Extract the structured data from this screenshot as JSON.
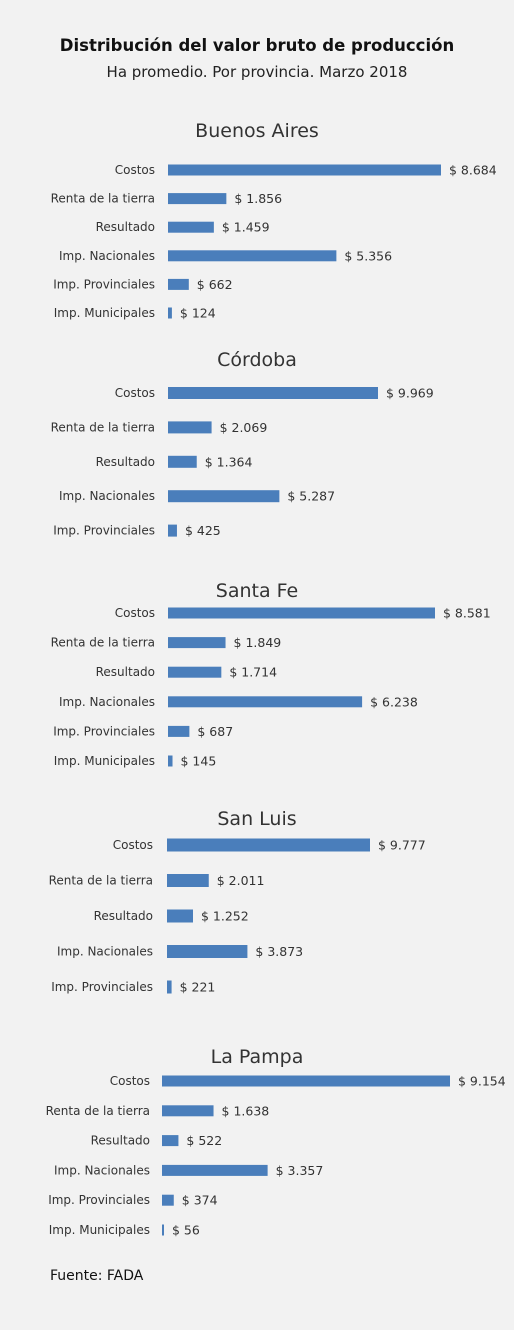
{
  "header": {
    "title": "Distribución del valor bruto de producción",
    "subtitle": "Ha promedio. Por provincia. Marzo 2018"
  },
  "footer": {
    "source": "Fuente: FADA"
  },
  "colors": {
    "bar": "#4a7ebb",
    "background": "#f2f2f2"
  },
  "chart_data": [
    {
      "type": "bar",
      "orientation": "horizontal",
      "title": "Buenos Aires",
      "categories": [
        "Costos",
        "Renta de la tierra",
        "Resultado",
        "Imp. Nacionales",
        "Imp. Provinciales",
        "Imp. Municipales"
      ],
      "values": [
        8684,
        1856,
        1459,
        5356,
        662,
        124
      ],
      "labels": [
        "$ 8.684",
        "$ 1.856",
        "$ 1.459",
        "$ 5.356",
        "$ 662",
        "$ 124"
      ]
    },
    {
      "type": "bar",
      "orientation": "horizontal",
      "title": "Córdoba",
      "categories": [
        "Costos",
        "Renta de la tierra",
        "Resultado",
        "Imp. Nacionales",
        "Imp. Provinciales"
      ],
      "values": [
        9969,
        2069,
        1364,
        5287,
        425
      ],
      "labels": [
        "$ 9.969",
        "$ 2.069",
        "$ 1.364",
        "$ 5.287",
        "$ 425"
      ]
    },
    {
      "type": "bar",
      "orientation": "horizontal",
      "title": "Santa Fe",
      "categories": [
        "Costos",
        "Renta de la tierra",
        "Resultado",
        "Imp. Nacionales",
        "Imp. Provinciales",
        "Imp. Municipales"
      ],
      "values": [
        8581,
        1849,
        1714,
        6238,
        687,
        145
      ],
      "labels": [
        "$ 8.581",
        "$ 1.849",
        "$ 1.714",
        "$ 6.238",
        "$ 687",
        "$ 145"
      ]
    },
    {
      "type": "bar",
      "orientation": "horizontal",
      "title": "San Luis",
      "categories": [
        "Costos",
        "Renta de la tierra",
        "Resultado",
        "Imp. Nacionales",
        "Imp. Provinciales"
      ],
      "values": [
        9777,
        2011,
        1252,
        3873,
        221
      ],
      "labels": [
        "$ 9.777",
        "$ 2.011",
        "$ 1.252",
        "$ 3.873",
        "$ 221"
      ]
    },
    {
      "type": "bar",
      "orientation": "horizontal",
      "title": "La Pampa",
      "categories": [
        "Costos",
        "Renta de la tierra",
        "Resultado",
        "Imp. Nacionales",
        "Imp. Provinciales",
        "Imp. Municipales"
      ],
      "values": [
        9154,
        1638,
        522,
        3357,
        374,
        56
      ],
      "labels": [
        "$ 9.154",
        "$ 1.638",
        "$ 522",
        "$ 3.357",
        "$ 374",
        "$ 56"
      ]
    }
  ]
}
